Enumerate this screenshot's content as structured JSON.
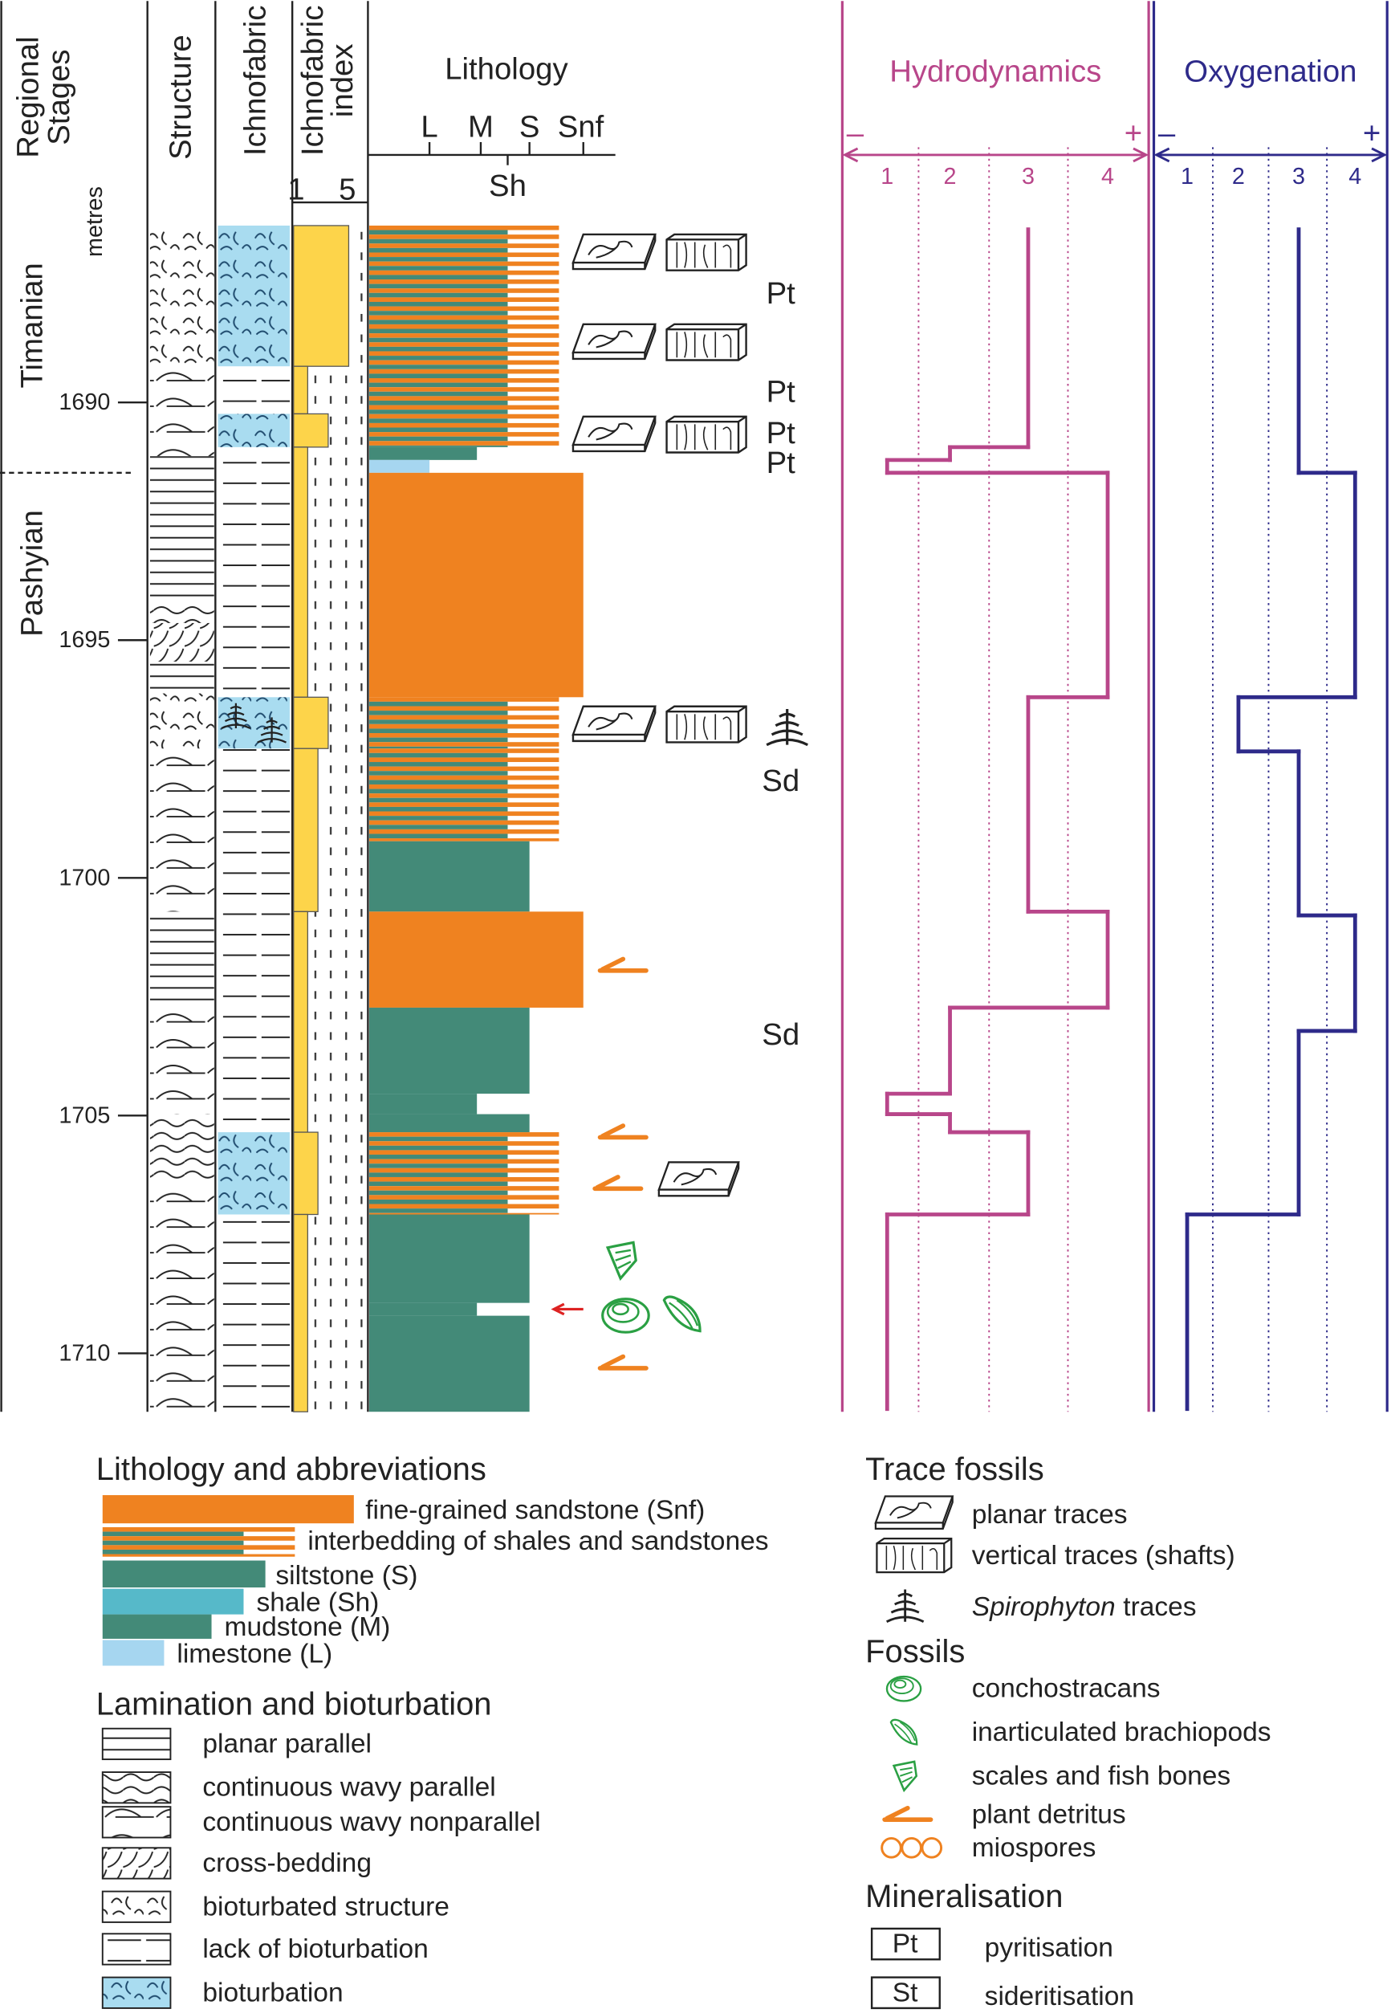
{
  "header": {
    "stages": [
      "Regional",
      "Stages"
    ],
    "metres": "metres",
    "structure": "Structure",
    "ichnofabric": "Ichnofabric",
    "ichnofabric_index": [
      "Ichnofabric",
      "index"
    ],
    "index_ticks": [
      1,
      5
    ],
    "lithology": "Lithology",
    "grain_scale": [
      "L",
      "M",
      "S",
      "Snf"
    ],
    "grain_scale_below": "Sh"
  },
  "depth_ticks": [
    1690,
    1695,
    1700,
    1705,
    1710
  ],
  "stages": [
    {
      "name": "Timanian",
      "top": 1686.28,
      "base": 1691.48
    },
    {
      "name": "Pashyian",
      "top": 1691.48,
      "base": 1711.23
    }
  ],
  "structure": [
    {
      "top": 1686.28,
      "base": 1689.24,
      "kind": 4
    },
    {
      "top": 1689.24,
      "base": 1691.13,
      "kind": 2
    },
    {
      "top": 1691.13,
      "base": 1694.24,
      "kind": 0
    },
    {
      "top": 1694.24,
      "base": 1694.64,
      "kind": 1
    },
    {
      "top": 1694.64,
      "base": 1695.45,
      "kind": 3
    },
    {
      "top": 1695.45,
      "base": 1696.12,
      "kind": 0
    },
    {
      "top": 1696.12,
      "base": 1697.28,
      "kind": 4
    },
    {
      "top": 1697.28,
      "base": 1700.71,
      "kind": 2
    },
    {
      "top": 1700.71,
      "base": 1702.73,
      "kind": 0
    },
    {
      "top": 1702.73,
      "base": 1704.97,
      "kind": 2
    },
    {
      "top": 1704.97,
      "base": 1706.37,
      "kind": 1
    },
    {
      "top": 1706.37,
      "base": 1711.23,
      "kind": 2
    }
  ],
  "ichnofabric": [
    {
      "top": 1686.28,
      "base": 1689.24,
      "kind": 6
    },
    {
      "top": 1689.24,
      "base": 1690.24,
      "kind": 5
    },
    {
      "top": 1690.24,
      "base": 1690.94,
      "kind": 6
    },
    {
      "top": 1690.94,
      "base": 1696.2,
      "kind": 5
    },
    {
      "top": 1696.2,
      "base": 1697.28,
      "kind": 6
    },
    {
      "top": 1697.28,
      "base": 1705.35,
      "kind": 5
    },
    {
      "top": 1705.35,
      "base": 1707.08,
      "kind": 6
    },
    {
      "top": 1707.08,
      "base": 1711.23,
      "kind": 5
    }
  ],
  "ichnofabric_index": [
    {
      "top": 1686.28,
      "base": 1689.24,
      "value": 5
    },
    {
      "top": 1689.24,
      "base": 1690.24,
      "value": 1
    },
    {
      "top": 1690.24,
      "base": 1690.94,
      "value": 3
    },
    {
      "top": 1690.94,
      "base": 1696.2,
      "value": 1
    },
    {
      "top": 1696.2,
      "base": 1697.28,
      "value": 3
    },
    {
      "top": 1697.28,
      "base": 1700.71,
      "value": 2
    },
    {
      "top": 1700.71,
      "base": 1705.35,
      "value": 1
    },
    {
      "top": 1705.35,
      "base": 1707.08,
      "value": 2
    },
    {
      "top": 1707.08,
      "base": 1711.23,
      "value": 1
    }
  ],
  "lithology_log": [
    {
      "top": 1686.28,
      "base": 1690.94,
      "lith": 1
    },
    {
      "top": 1690.94,
      "base": 1691.21,
      "lith": 4
    },
    {
      "top": 1691.21,
      "base": 1691.48,
      "lith": 5
    },
    {
      "top": 1691.48,
      "base": 1696.2,
      "lith": 0
    },
    {
      "top": 1696.2,
      "base": 1697.28,
      "lith": 1
    },
    {
      "top": 1697.28,
      "base": 1699.23,
      "lith": 1
    },
    {
      "top": 1699.23,
      "base": 1700.71,
      "lith": 2
    },
    {
      "top": 1700.71,
      "base": 1702.73,
      "lith": 0
    },
    {
      "top": 1702.73,
      "base": 1704.54,
      "lith": 2
    },
    {
      "top": 1704.54,
      "base": 1704.97,
      "lith": 4
    },
    {
      "top": 1704.97,
      "base": 1705.35,
      "lith": 2
    },
    {
      "top": 1705.35,
      "base": 1707.08,
      "lith": 1
    },
    {
      "top": 1707.08,
      "base": 1708.94,
      "lith": 2
    },
    {
      "top": 1708.94,
      "base": 1709.21,
      "lith": 4
    },
    {
      "top": 1709.21,
      "base": 1711.23,
      "lith": 2
    }
  ],
  "log_labels": [
    {
      "text": "Pt",
      "depth": 1687.71
    },
    {
      "text": "Pt",
      "depth": 1689.78
    },
    {
      "text": "Pt",
      "depth": 1690.65
    },
    {
      "text": "Pt",
      "depth": 1691.27
    },
    {
      "text": "Sd",
      "depth": 1697.96
    },
    {
      "text": "Sd",
      "depth": 1703.3
    }
  ],
  "hydrodynamics": {
    "title": "Hydrodynamics",
    "minus": "–",
    "plus": "+",
    "ticks": [
      1,
      2,
      3,
      4
    ],
    "depths": [
      1686.36,
      1690.94,
      1691.21,
      1691.48,
      1696.2,
      1700.71,
      1702.73,
      1704.54,
      1704.97,
      1705.35,
      1707.08,
      1711.17
    ],
    "values": [
      3,
      2,
      1,
      4,
      3,
      4,
      2,
      1,
      2,
      3,
      1
    ],
    "color": "#b8468a"
  },
  "oxygenation": {
    "title": "Oxygenation",
    "minus": "–",
    "plus": "+",
    "ticks": [
      1,
      2,
      3,
      4
    ],
    "depths": [
      1686.36,
      1691.48,
      1696.2,
      1697.34,
      1700.79,
      1703.22,
      1707.08,
      1711.17
    ],
    "values": [
      3,
      4,
      2,
      3,
      4,
      3,
      1
    ],
    "color": "#2e2a8a"
  },
  "legend": {
    "lithology": {
      "title": "Lithology and abbreviations",
      "items": [
        "fine-grained sandstone (Snf)",
        "interbedding of shales and sandstones",
        "siltstone (S)",
        "shale (Sh)",
        "mudstone (M)",
        "limestone (L)"
      ]
    },
    "lamination": {
      "title": "Lamination and bioturbation",
      "items": [
        "planar parallel",
        "continuous wavy parallel",
        "continuous wavy nonparallel",
        "cross-bedding",
        "bioturbated structure",
        "lack of bioturbation",
        "bioturbation"
      ]
    },
    "trace_fossils": {
      "title": "Trace fossils",
      "items": [
        {
          "text": "planar traces"
        },
        {
          "text": "vertical traces (shafts)"
        },
        {
          "italic": "Spirophyton",
          "text": "traces"
        }
      ]
    },
    "fossils": {
      "title": "Fossils",
      "items": [
        "conchostracans",
        "inarticulated brachiopods",
        "scales and fish bones",
        "plant detritus",
        "miospores"
      ]
    },
    "mineralisation": {
      "title": "Mineralisation",
      "items": [
        {
          "code": "Pt",
          "text": "pyritisation"
        },
        {
          "code": "St",
          "text": "sideritisation"
        }
      ]
    }
  }
}
